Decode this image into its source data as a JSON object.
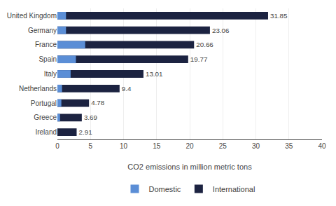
{
  "chart_data": {
    "type": "bar",
    "orientation": "horizontal",
    "categories": [
      "United Kingdom",
      "Germany",
      "France",
      "Spain",
      "Italy",
      "Netherlands",
      "Portugal",
      "Greece",
      "Ireland"
    ],
    "series": [
      {
        "name": "International",
        "color": "#1c2341",
        "values": [
          31.85,
          23.06,
          20.66,
          19.77,
          13.01,
          9.4,
          4.78,
          3.69,
          2.91
        ],
        "data_labels": true
      },
      {
        "name": "Domestic",
        "color": "#5b8ed6",
        "values": [
          1.3,
          1.3,
          4.2,
          2.8,
          2.0,
          0.7,
          0.6,
          0.4,
          0.0
        ]
      }
    ],
    "xlabel": "CO2 emissions in million metric tons",
    "xlim": [
      0,
      40
    ],
    "xticks": [
      0,
      5,
      10,
      15,
      20,
      25,
      30,
      35,
      40
    ],
    "grid": true,
    "legend": "bottom"
  }
}
